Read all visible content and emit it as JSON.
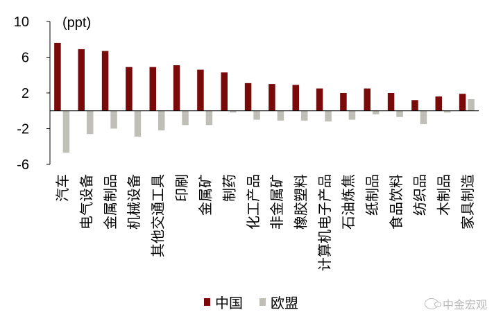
{
  "chart_data": {
    "type": "bar",
    "unit_label": "(ppt)",
    "categories": [
      "汽车",
      "电气设备",
      "金属制品",
      "机械设备",
      "其他交通工具",
      "印刷",
      "金属矿",
      "制药",
      "化工产品",
      "非金属矿",
      "橡胶塑料",
      "计算机电子产品",
      "石油炼焦",
      "纸制品",
      "食品饮料",
      "纺织品",
      "木制品",
      "家具制造"
    ],
    "series": [
      {
        "name": "中国",
        "color": "#7a0a0a",
        "values": [
          7.6,
          6.9,
          6.7,
          4.9,
          4.9,
          5.1,
          4.6,
          4.3,
          3.1,
          3.0,
          2.9,
          2.5,
          2.0,
          2.5,
          2.0,
          1.2,
          1.6,
          1.9
        ]
      },
      {
        "name": "欧盟",
        "color": "#bfbfb7",
        "values": [
          -4.7,
          -2.6,
          -2.0,
          -2.9,
          -2.2,
          -1.6,
          -1.6,
          -0.2,
          -1.0,
          -1.1,
          -1.1,
          -1.2,
          -1.0,
          -0.4,
          -0.7,
          -1.5,
          -0.2,
          1.3
        ]
      }
    ],
    "ylim": [
      -6,
      10
    ],
    "yticks": [
      "10",
      "6",
      "2",
      "-2",
      "-6"
    ],
    "ytick_values": [
      10,
      6,
      2,
      -2,
      -6
    ],
    "legend_position": "bottom-center"
  },
  "watermark": {
    "text": "中金宏观"
  }
}
